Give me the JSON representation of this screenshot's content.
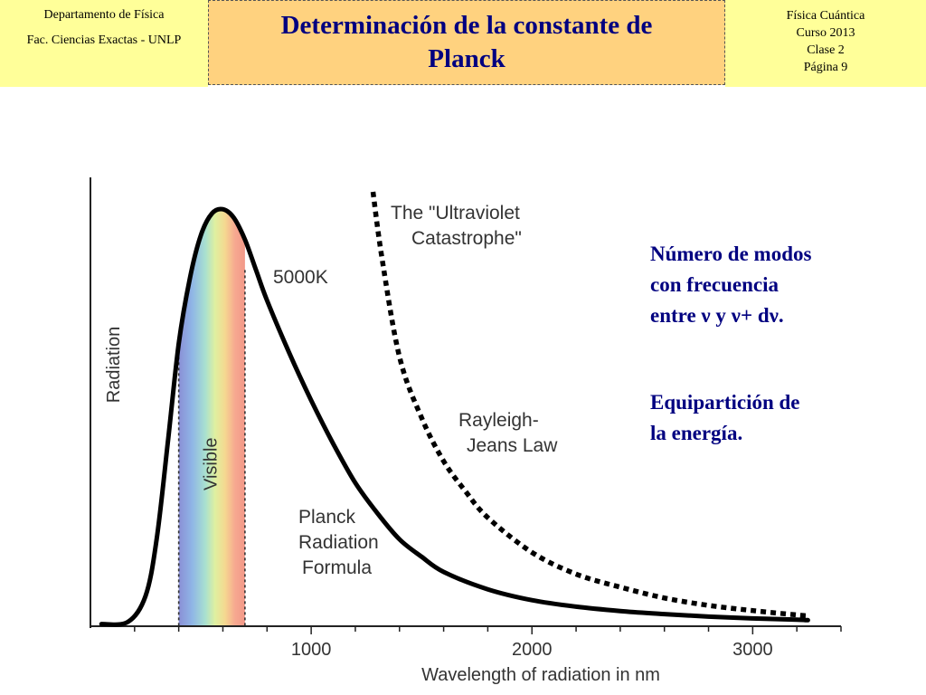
{
  "header": {
    "left": [
      "Departamento de Física",
      "Fac. Ciencias Exactas - UNLP"
    ],
    "title_line1": "Determinación de la constante de",
    "title_line2": "Planck",
    "right": [
      "Física Cuántica",
      "Curso 2013",
      "Clase 2",
      "Página 9"
    ]
  },
  "notes": {
    "modes": [
      "Número de modos",
      "con frecuencia",
      "entre ν y ν+ dν."
    ],
    "equipartition": [
      "Equipartición de",
      "la energía."
    ]
  },
  "colors": {
    "header_bg": "#ffff99",
    "title_bg": "#ffd27f",
    "title_text": "#000080",
    "note_text": "#000080",
    "curve": "#000000"
  },
  "chart_data": {
    "type": "line",
    "xlabel": "Wavelength of radiation in nm",
    "ylabel": "Radiation",
    "x_ticks": [
      1000,
      2000,
      3000
    ],
    "xlim": [
      0,
      3400
    ],
    "ylim": [
      0,
      1.0
    ],
    "grid": false,
    "series": [
      {
        "name": "Planck Radiation Formula",
        "style": "solid",
        "x": [
          50,
          170,
          250,
          300,
          350,
          400,
          450,
          500,
          550,
          600,
          650,
          700,
          750,
          800,
          900,
          1000,
          1100,
          1200,
          1300,
          1400,
          1500,
          1600,
          1800,
          2000,
          2200,
          2400,
          2600,
          2800,
          3000,
          3200,
          3250
        ],
        "y": [
          0.005,
          0.01,
          0.07,
          0.2,
          0.42,
          0.65,
          0.8,
          0.9,
          0.95,
          0.96,
          0.94,
          0.89,
          0.82,
          0.75,
          0.63,
          0.52,
          0.42,
          0.33,
          0.26,
          0.2,
          0.16,
          0.125,
          0.085,
          0.06,
          0.045,
          0.035,
          0.028,
          0.022,
          0.018,
          0.015,
          0.014
        ]
      },
      {
        "name": "Rayleigh-Jeans Law",
        "style": "dotted",
        "x": [
          1280,
          1320,
          1400,
          1500,
          1600,
          1700,
          1800,
          2000,
          2200,
          2400,
          2600,
          2800,
          3000,
          3200,
          3250
        ],
        "y": [
          1.0,
          0.85,
          0.62,
          0.48,
          0.38,
          0.31,
          0.25,
          0.17,
          0.12,
          0.09,
          0.065,
          0.048,
          0.036,
          0.026,
          0.024
        ]
      }
    ],
    "visible_band": {
      "from": 400,
      "to": 700,
      "label": "Visible"
    },
    "annotations": {
      "temperature": "5000K",
      "uv_title_1": "The \"Ultraviolet",
      "uv_title_2": "Catastrophe\"",
      "rj_label_1": "Rayleigh-",
      "rj_label_2": "Jeans Law",
      "planck_label_1": "Planck",
      "planck_label_2": "Radiation",
      "planck_label_3": "Formula"
    }
  }
}
